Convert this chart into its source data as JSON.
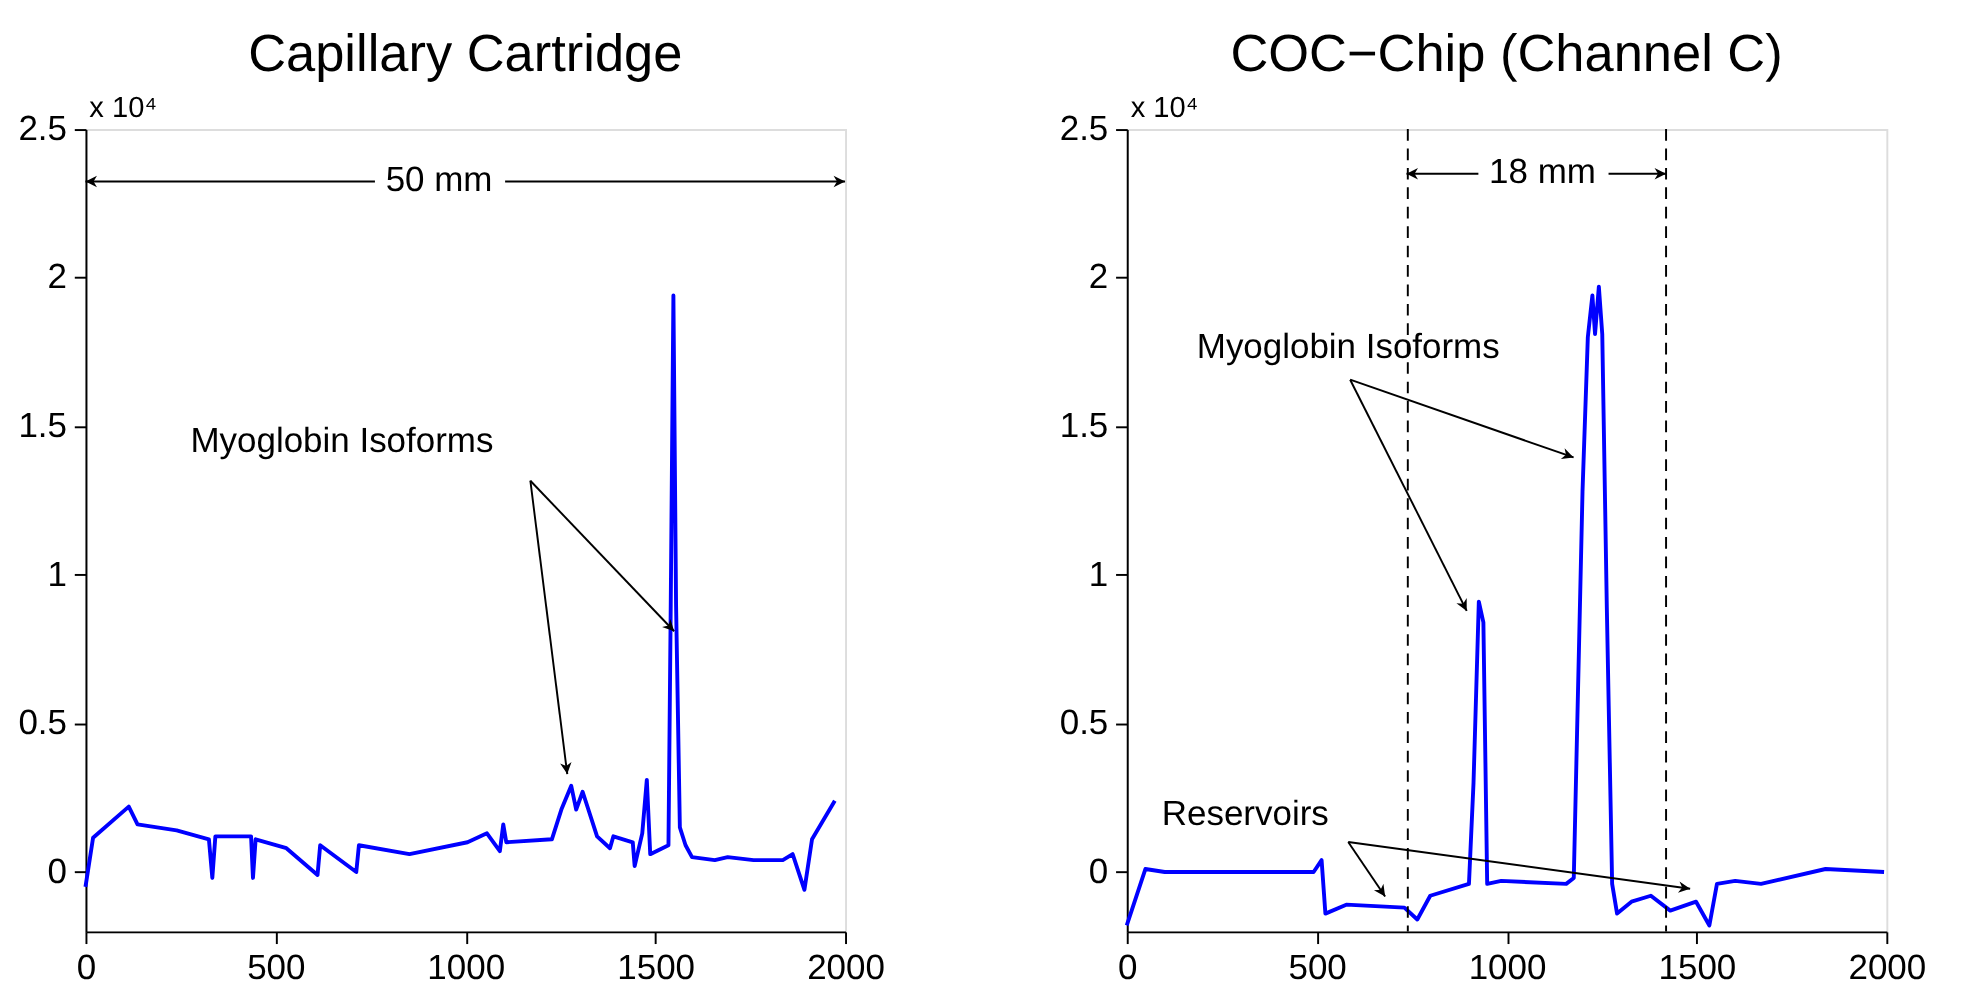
{
  "chart_data": [
    {
      "type": "line",
      "title": "Capillary Cartridge",
      "x": [
        0,
        20,
        114,
        137,
        240,
        325,
        334,
        342,
        436,
        441,
        448,
        529,
        611,
        618,
        713,
        720,
        853,
        1006,
        1057,
        1091,
        1100,
        1108,
        1228,
        1253,
        1279,
        1292,
        1309,
        1347,
        1381,
        1390,
        1441,
        1446,
        1466,
        1478,
        1487,
        1535,
        1541,
        1548,
        1555,
        1565,
        1580,
        1597,
        1657,
        1691,
        1759,
        1836,
        1862,
        1893,
        1913,
        1973
      ],
      "series": [
        {
          "color": "#0000ff",
          "values": [
            -0.05,
            0.115,
            0.22,
            0.16,
            0.14,
            0.11,
            -0.02,
            0.12,
            0.12,
            -0.02,
            0.11,
            0.08,
            -0.01,
            0.09,
            0.0,
            0.09,
            0.06,
            0.1,
            0.13,
            0.07,
            0.16,
            0.1,
            0.11,
            0.21,
            0.29,
            0.21,
            0.27,
            0.12,
            0.08,
            0.12,
            0.1,
            0.02,
            0.13,
            0.31,
            0.06,
            0.09,
            0.9,
            1.94,
            0.9,
            0.15,
            0.09,
            0.05,
            0.04,
            0.05,
            0.04,
            0.04,
            0.06,
            -0.06,
            0.11,
            0.24
          ]
        }
      ],
      "xlim": [
        0,
        2000
      ],
      "xticks": [
        0,
        500,
        1000,
        1500,
        2000
      ],
      "ylim": [
        -0.2,
        2.5
      ],
      "yticks": [
        0,
        0.5,
        1,
        1.5,
        2,
        2.5
      ],
      "grid": false,
      "marker": "none",
      "line_style": "solid",
      "annotations": [
        "x 10⁴",
        "50 mm",
        {
          "text": "Myoglobin Isoforms",
          "x": 1550,
          "y": 0.81
        }
      ]
    },
    {
      "type": "line",
      "title": "COC−Chip (Channel C)",
      "x": [
        0,
        49,
        100,
        492,
        513,
        523,
        578,
        731,
        765,
        799,
        901,
        913,
        927,
        939,
        949,
        986,
        1157,
        1177,
        1200,
        1214,
        1226,
        1233,
        1243,
        1252,
        1264,
        1278,
        1291,
        1329,
        1380,
        1431,
        1499,
        1534,
        1554,
        1602,
        1670,
        1840,
        1994
      ],
      "series": [
        {
          "color": "#0000ff",
          "values": [
            -0.18,
            0.01,
            0.0,
            0.0,
            0.04,
            -0.14,
            -0.11,
            -0.12,
            -0.16,
            -0.08,
            -0.04,
            0.3,
            0.91,
            0.84,
            -0.04,
            -0.03,
            -0.04,
            -0.02,
            1.28,
            1.8,
            1.94,
            1.81,
            1.97,
            1.81,
            0.89,
            -0.04,
            -0.14,
            -0.1,
            -0.08,
            -0.13,
            -0.1,
            -0.18,
            -0.04,
            -0.03,
            -0.04,
            0.01,
            0.0
          ]
        }
      ],
      "xlim": [
        0,
        2000
      ],
      "xticks": [
        0,
        500,
        1000,
        1500,
        2000
      ],
      "ylim": [
        -0.2,
        2.5
      ],
      "yticks": [
        0,
        0.5,
        1,
        1.5,
        2,
        2.5
      ],
      "grid": false,
      "marker": "none",
      "line_style": "solid",
      "ref_lines": [
        {
          "axis": "x",
          "value": 740,
          "color": "#000000",
          "line_style": "dashed"
        },
        {
          "axis": "x",
          "value": 1420,
          "color": "#000000",
          "line_style": "dashed"
        }
      ],
      "annotations": [
        "x 10⁴",
        {
          "text": "18 mm",
          "x": 1420,
          "y": 2.35
        },
        "Myoglobin Isoforms",
        "Reservoirs"
      ]
    }
  ]
}
